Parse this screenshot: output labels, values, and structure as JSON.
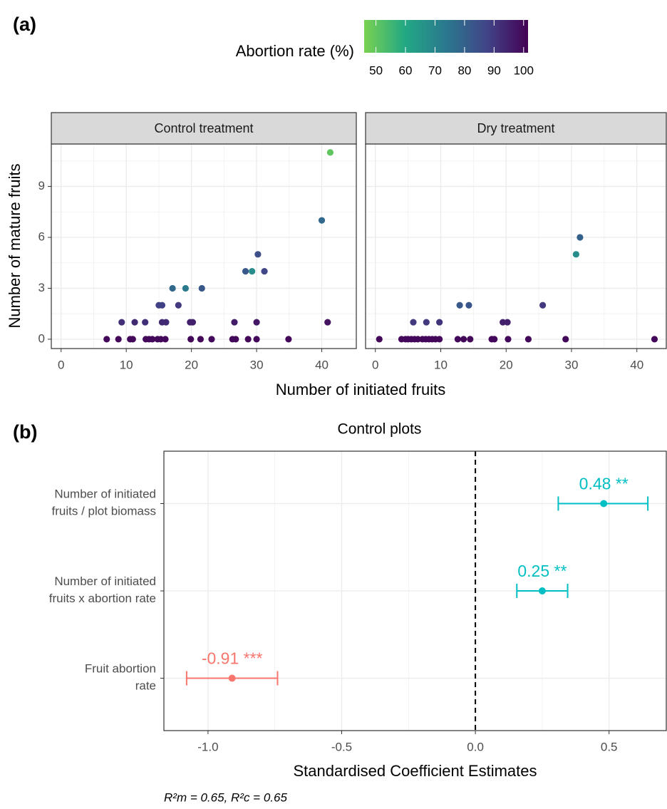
{
  "panel_labels": [
    "(a)",
    "(b)"
  ],
  "footnote": "R²m = 0.65, R²c = 0.65",
  "chart_data": [
    {
      "type": "scatter",
      "title": "Control treatment",
      "xlabel": "Number of initiated fruits",
      "ylabel": "Number of mature fruits",
      "x": [
        41.3,
        40,
        30.2,
        28.3,
        29.3,
        31.2,
        17.1,
        19.1,
        21.6,
        15,
        15.5,
        18,
        9.3,
        11.3,
        12.9,
        15.5,
        16.1,
        19.8,
        20.2,
        26.6,
        30,
        40.9,
        7,
        8.8,
        10.6,
        11,
        13,
        13.5,
        14,
        14.8,
        15.3,
        16,
        19.9,
        21.4,
        23.1,
        26.3,
        26.8,
        28.7,
        30,
        34.9
      ],
      "y": [
        11,
        7,
        5,
        4,
        4,
        4,
        3,
        3,
        3,
        2,
        2,
        2,
        1,
        1,
        1,
        1,
        1,
        1,
        1,
        1,
        1,
        1,
        0,
        0,
        0,
        0,
        0,
        0,
        0,
        0,
        0,
        0,
        0,
        0,
        0,
        0,
        0,
        0,
        0,
        0
      ],
      "color_values": [
        50,
        78,
        85,
        82,
        68,
        87,
        78,
        73,
        82,
        88,
        88,
        90,
        92,
        93,
        92,
        93,
        93,
        95,
        95,
        96,
        97,
        98,
        100,
        100,
        100,
        100,
        100,
        100,
        100,
        100,
        100,
        100,
        100,
        100,
        100,
        100,
        100,
        100,
        100,
        100
      ],
      "xlim": [
        -1.5,
        45.3
      ],
      "xticks": [
        0,
        10,
        20,
        30,
        40
      ],
      "ylim": [
        -0.55,
        11.5
      ],
      "yticks": [
        0,
        3,
        6,
        9
      ],
      "grid": true,
      "minor_grid": true,
      "colorbar": {
        "title": "Abortion rate (%)",
        "lim": [
          46,
          101.5
        ],
        "ticks": [
          50,
          60,
          70,
          80,
          90,
          100
        ],
        "colors": [
          "#7ad151",
          "#22a884",
          "#2a788e",
          "#414487",
          "#440154"
        ]
      }
    },
    {
      "type": "scatter",
      "title": "Dry treatment",
      "x": [
        31.3,
        30.7,
        12.9,
        14.3,
        25.6,
        5.8,
        7.8,
        9.8,
        19.5,
        20.2,
        0.6,
        4,
        4.6,
        5,
        5.5,
        6,
        6.5,
        7.2,
        7.7,
        8.2,
        8.7,
        9.2,
        9.8,
        12.6,
        13.5,
        14.5,
        17.8,
        18.2,
        20.3,
        23.4,
        29.1,
        42.7
      ],
      "y": [
        6,
        5,
        2,
        2,
        2,
        1,
        1,
        1,
        1,
        1,
        0,
        0,
        0,
        0,
        0,
        0,
        0,
        0,
        0,
        0,
        0,
        0,
        0,
        0,
        0,
        0,
        0,
        0,
        0,
        0,
        0,
        0
      ],
      "color_values": [
        80,
        68,
        82,
        83,
        90,
        90,
        90,
        91,
        95,
        95,
        100,
        100,
        100,
        100,
        100,
        100,
        100,
        100,
        100,
        100,
        100,
        100,
        100,
        100,
        100,
        100,
        100,
        100,
        100,
        100,
        100,
        100
      ],
      "xlim": [
        -1.5,
        44.5
      ],
      "xticks": [
        0,
        10,
        20,
        30,
        40
      ],
      "ylim": [
        -0.55,
        11.5
      ],
      "yticks": [
        0,
        3,
        6,
        9
      ],
      "grid": true,
      "minor_grid": true
    },
    {
      "type": "errorbar",
      "title": "Control plots",
      "xlabel": "Standardised Coefficient Estimates",
      "categories": [
        "Number of initiated\nfruits / plot biomass",
        "Number of initiated\nfruits x abortion rate",
        "Fruit abortion\nrate"
      ],
      "values": [
        0.48,
        0.25,
        -0.91
      ],
      "lower": [
        0.31,
        0.155,
        -1.08
      ],
      "upper": [
        0.645,
        0.345,
        -0.74
      ],
      "value_labels": [
        "0.48 **",
        "0.25 **",
        "-0.91 ***"
      ],
      "colors": [
        "#00bfc4",
        "#00bfc4",
        "#f8766d"
      ],
      "xlim": [
        -1.165,
        0.714
      ],
      "xticks": [
        {
          "value": -1,
          "label": "-1.0"
        },
        {
          "value": -0.5,
          "label": "-0.5"
        },
        {
          "value": 0,
          "label": "0.0"
        },
        0.5
      ],
      "reference_line": 0,
      "grid": true,
      "minor_grid": true
    }
  ]
}
